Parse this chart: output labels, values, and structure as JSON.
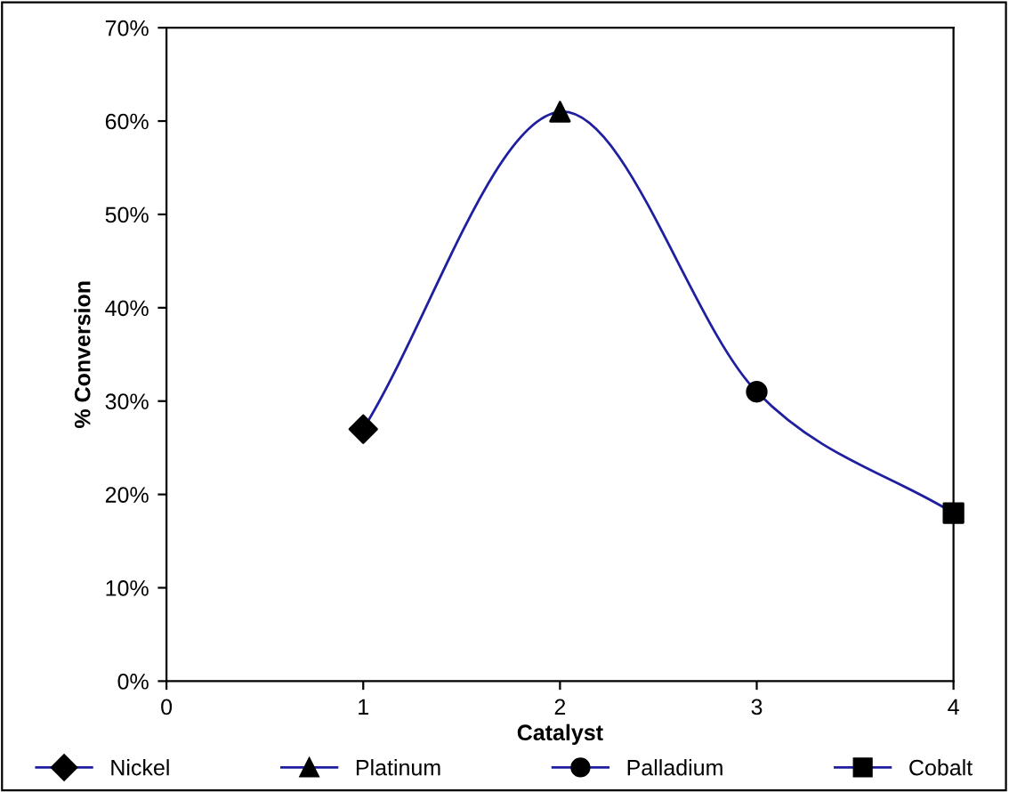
{
  "chart_data": {
    "type": "scatter",
    "xlabel": "Catalyst",
    "ylabel": "% Conversion",
    "xlim": [
      0,
      4
    ],
    "xticks": [
      0,
      1,
      2,
      3,
      4
    ],
    "ylim": [
      0,
      70
    ],
    "yticks": [
      {
        "value": 0,
        "label": "0%"
      },
      {
        "value": 10,
        "label": "10%"
      },
      {
        "value": 20,
        "label": "20%"
      },
      {
        "value": 30,
        "label": "30%"
      },
      {
        "value": 40,
        "label": "40%"
      },
      {
        "value": 50,
        "label": "50%"
      },
      {
        "value": 60,
        "label": "60%"
      },
      {
        "value": 70,
        "label": "70%"
      }
    ],
    "grid": false,
    "legend": "bottom",
    "series": [
      {
        "type": "line",
        "color": "#1f1fa0",
        "x": [
          1,
          2,
          3,
          4
        ],
        "values": [
          27,
          61,
          31,
          18
        ],
        "marker": "none",
        "line_style": "solid"
      },
      {
        "name": "Nickel",
        "color": "#000000",
        "x": [
          1
        ],
        "values": [
          27
        ],
        "marker": "diamond"
      },
      {
        "name": "Platinum",
        "color": "#000000",
        "x": [
          2
        ],
        "values": [
          61
        ],
        "marker": "triangle"
      },
      {
        "name": "Palladium",
        "color": "#000000",
        "x": [
          3
        ],
        "values": [
          31
        ],
        "marker": "circle"
      },
      {
        "name": "Cobalt",
        "color": "#000000",
        "x": [
          4
        ],
        "values": [
          18
        ],
        "marker": "square"
      }
    ]
  }
}
